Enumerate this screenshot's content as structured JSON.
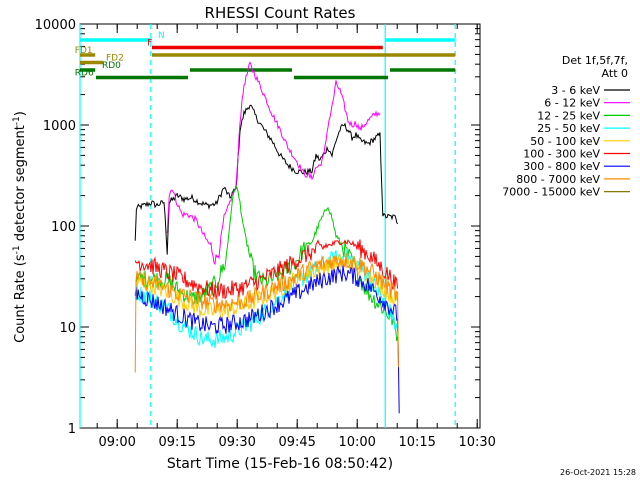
{
  "chart_data": {
    "type": "line",
    "title": "RHESSI Count Rates",
    "xlabel": "Start Time (15-Feb-16 08:50:42)",
    "ylabel_parts": {
      "main": "Count Rate (s",
      "sup1": "-1",
      "mid": " detector segment",
      "sup2": "-1",
      "end": ")"
    },
    "y_scale": "log",
    "ylim": [
      1,
      10000
    ],
    "xlim_minutes": [
      0,
      100
    ],
    "x_ticks": [
      {
        "t": 9.3,
        "label": "09:00"
      },
      {
        "t": 24.3,
        "label": "09:15"
      },
      {
        "t": 39.3,
        "label": "09:30"
      },
      {
        "t": 54.3,
        "label": "09:45"
      },
      {
        "t": 69.3,
        "label": "10:00"
      },
      {
        "t": 84.3,
        "label": "10:15"
      },
      {
        "t": 99.3,
        "label": "10:30"
      }
    ],
    "y_ticks": [
      {
        "v": 1,
        "label": "1"
      },
      {
        "v": 10,
        "label": "10"
      },
      {
        "v": 100,
        "label": "100"
      },
      {
        "v": 1000,
        "label": "1000"
      },
      {
        "v": 10000,
        "label": "10000"
      }
    ],
    "legend_header": [
      "Det 1f,5f,7f,",
      "Att 0"
    ],
    "series": [
      {
        "name": "3 - 6 keV",
        "color": "#000000",
        "points": [
          [
            13.8,
            70
          ],
          [
            14.1,
            150
          ],
          [
            16,
            160
          ],
          [
            18,
            170
          ],
          [
            19,
            160
          ],
          [
            21,
            172
          ],
          [
            21.8,
            60
          ],
          [
            22.3,
            170
          ],
          [
            24.3,
            200
          ],
          [
            26,
            185
          ],
          [
            28,
            190
          ],
          [
            30,
            170
          ],
          [
            32,
            160
          ],
          [
            34,
            165
          ],
          [
            36,
            240
          ],
          [
            37.5,
            190
          ],
          [
            38,
            210
          ],
          [
            39,
            230
          ],
          [
            40,
            900
          ],
          [
            41,
            1300
          ],
          [
            42.5,
            1600
          ],
          [
            44,
            1200
          ],
          [
            46,
            900
          ],
          [
            48,
            700
          ],
          [
            50,
            500
          ],
          [
            52,
            400
          ],
          [
            54,
            350
          ],
          [
            56,
            340
          ],
          [
            58,
            350
          ],
          [
            59,
            500
          ],
          [
            60,
            450
          ],
          [
            62,
            600
          ],
          [
            63,
            500
          ],
          [
            64,
            700
          ],
          [
            65,
            900
          ],
          [
            66,
            1000
          ],
          [
            67,
            900
          ],
          [
            68,
            750
          ],
          [
            69,
            800
          ],
          [
            70,
            700
          ],
          [
            72,
            650
          ],
          [
            73,
            700
          ],
          [
            74,
            750
          ],
          [
            75,
            800
          ],
          [
            75.7,
            130
          ],
          [
            76,
            125
          ],
          [
            79,
            122
          ],
          [
            79.4,
            105
          ]
        ]
      },
      {
        "name": "6 - 12 keV",
        "color": "#ff00ff",
        "points": [
          [
            21.8,
            90
          ],
          [
            22.3,
            200
          ],
          [
            23,
            240
          ],
          [
            24,
            180
          ],
          [
            25.5,
            130
          ],
          [
            27,
            130
          ],
          [
            29,
            115
          ],
          [
            31,
            80
          ],
          [
            33,
            60
          ],
          [
            34,
            45
          ],
          [
            35,
            65
          ],
          [
            36,
            120
          ],
          [
            37,
            150
          ],
          [
            38,
            200
          ],
          [
            39,
            240
          ],
          [
            40,
            1100
          ],
          [
            41,
            2500
          ],
          [
            42.5,
            4000
          ],
          [
            44,
            3000
          ],
          [
            46,
            2000
          ],
          [
            48,
            1300
          ],
          [
            50,
            900
          ],
          [
            52,
            600
          ],
          [
            54,
            450
          ],
          [
            56,
            330
          ],
          [
            58,
            300
          ],
          [
            59,
            380
          ],
          [
            60,
            400
          ],
          [
            61,
            500
          ],
          [
            62,
            1000
          ],
          [
            63,
            1500
          ],
          [
            64,
            2600
          ],
          [
            65,
            2200
          ],
          [
            66,
            1600
          ],
          [
            67,
            1100
          ],
          [
            68,
            1000
          ],
          [
            69,
            1050
          ],
          [
            70,
            900
          ],
          [
            72,
            1100
          ],
          [
            73,
            1200
          ],
          [
            74,
            1300
          ],
          [
            75,
            1300
          ]
        ]
      },
      {
        "name": "12 - 25 keV",
        "color": "#00cc00",
        "points": [
          [
            13.8,
            20
          ],
          [
            14.5,
            30
          ],
          [
            18,
            30
          ],
          [
            22,
            29
          ],
          [
            25,
            22
          ],
          [
            28,
            19
          ],
          [
            31,
            21
          ],
          [
            34,
            27
          ],
          [
            36.5,
            45
          ],
          [
            38,
            170
          ],
          [
            39,
            260
          ],
          [
            40,
            170
          ],
          [
            41,
            90
          ],
          [
            42,
            60
          ],
          [
            43,
            40
          ],
          [
            44,
            32
          ],
          [
            46,
            28
          ],
          [
            48,
            30
          ],
          [
            50,
            33
          ],
          [
            52,
            38
          ],
          [
            54,
            45
          ],
          [
            56,
            60
          ],
          [
            58,
            70
          ],
          [
            60,
            110
          ],
          [
            61,
            130
          ],
          [
            62,
            160
          ],
          [
            63,
            120
          ],
          [
            64,
            80
          ],
          [
            66,
            60
          ],
          [
            68,
            45
          ],
          [
            70,
            30
          ],
          [
            72,
            22
          ],
          [
            74,
            18
          ],
          [
            76,
            15
          ],
          [
            78,
            12
          ],
          [
            79.4,
            8
          ]
        ]
      },
      {
        "name": "25 - 50 keV",
        "color": "#00ffff",
        "points": [
          [
            13.8,
            22
          ],
          [
            14.5,
            22
          ],
          [
            18,
            19
          ],
          [
            22,
            15
          ],
          [
            25,
            11
          ],
          [
            28,
            9
          ],
          [
            31,
            7.5
          ],
          [
            34,
            7.5
          ],
          [
            37,
            8
          ],
          [
            40,
            9.5
          ],
          [
            43,
            11
          ],
          [
            46,
            14
          ],
          [
            49,
            18
          ],
          [
            52,
            23
          ],
          [
            55,
            29
          ],
          [
            58,
            35
          ],
          [
            61,
            42
          ],
          [
            64,
            48
          ],
          [
            66,
            50
          ],
          [
            68,
            46
          ],
          [
            70,
            40
          ],
          [
            72,
            32
          ],
          [
            74,
            24
          ],
          [
            76,
            18
          ],
          [
            78,
            13
          ],
          [
            79.4,
            9
          ]
        ]
      },
      {
        "name": "50 - 100 keV",
        "color": "#ffcc00",
        "points": [
          [
            13.8,
            28
          ],
          [
            18,
            26
          ],
          [
            22,
            22
          ],
          [
            26,
            18
          ],
          [
            30,
            15
          ],
          [
            34,
            14
          ],
          [
            38,
            15
          ],
          [
            42,
            17
          ],
          [
            46,
            20
          ],
          [
            50,
            24
          ],
          [
            54,
            30
          ],
          [
            58,
            36
          ],
          [
            62,
            41
          ],
          [
            65,
            44
          ],
          [
            68,
            41
          ],
          [
            71,
            36
          ],
          [
            74,
            29
          ],
          [
            77,
            22
          ],
          [
            79.4,
            18
          ]
        ]
      },
      {
        "name": "100 - 300 keV",
        "color": "#ff0000",
        "points": [
          [
            13.8,
            45
          ],
          [
            17,
            42
          ],
          [
            21,
            36
          ],
          [
            25,
            31
          ],
          [
            29,
            26
          ],
          [
            33,
            23
          ],
          [
            37,
            23
          ],
          [
            41,
            25
          ],
          [
            45,
            29
          ],
          [
            49,
            35
          ],
          [
            53,
            43
          ],
          [
            57,
            53
          ],
          [
            61,
            62
          ],
          [
            65,
            70
          ],
          [
            67,
            70
          ],
          [
            69,
            64
          ],
          [
            72,
            53
          ],
          [
            75,
            40
          ],
          [
            78,
            30
          ],
          [
            79.4,
            24
          ]
        ]
      },
      {
        "name": "300 - 800 keV",
        "color": "#0000ff",
        "points": [
          [
            13.8,
            22
          ],
          [
            17,
            19
          ],
          [
            21,
            16
          ],
          [
            25,
            13
          ],
          [
            29,
            11
          ],
          [
            33,
            10
          ],
          [
            37,
            10.5
          ],
          [
            41,
            11.5
          ],
          [
            45,
            13.5
          ],
          [
            49,
            16.5
          ],
          [
            53,
            20
          ],
          [
            57,
            25
          ],
          [
            61,
            30
          ],
          [
            65,
            34
          ],
          [
            67,
            34
          ],
          [
            69,
            31
          ],
          [
            72,
            26
          ],
          [
            75,
            20
          ],
          [
            78,
            15
          ],
          [
            79.4,
            13
          ],
          [
            79.8,
            1.4
          ]
        ]
      },
      {
        "name": "800 - 7000 keV",
        "color": "#ff8800",
        "points": [
          [
            13.8,
            4
          ],
          [
            14,
            30
          ],
          [
            17,
            28
          ],
          [
            21,
            25
          ],
          [
            25,
            21
          ],
          [
            29,
            19
          ],
          [
            33,
            17
          ],
          [
            37,
            17
          ],
          [
            41,
            18
          ],
          [
            45,
            21
          ],
          [
            49,
            25
          ],
          [
            53,
            30
          ],
          [
            57,
            37
          ],
          [
            61,
            43
          ],
          [
            65,
            47
          ],
          [
            68,
            45
          ],
          [
            71,
            40
          ],
          [
            74,
            32
          ],
          [
            77,
            25
          ],
          [
            79.4,
            20
          ],
          [
            79.6,
            4
          ]
        ]
      },
      {
        "name": "7000 - 15000 keV",
        "color": "#887700",
        "points": []
      }
    ],
    "bars": [
      {
        "name": "N",
        "color": "#00ffff",
        "label_t": 19.5,
        "y": 2,
        "segments": [
          [
            0,
            17.7
          ],
          [
            76.3,
            93.8
          ]
        ]
      },
      {
        "name": "F",
        "color": "#ee0000",
        "label_t": 16.8,
        "y": 3,
        "segments": [
          [
            18.0,
            75.7
          ]
        ]
      },
      {
        "name": "FD1",
        "color": "#998800",
        "label_t": -1.3,
        "y": 4,
        "segments": [
          [
            0,
            3.8
          ],
          [
            18.0,
            93.8
          ]
        ]
      },
      {
        "name": "FD2",
        "color": "#998800",
        "label_t": 6.5,
        "y": 5,
        "segments": [
          [
            0,
            5.8
          ]
        ]
      },
      {
        "name": "RD0",
        "color": "#007700",
        "label_t": 5.5,
        "y": 6,
        "segments": [
          [
            0,
            3.8
          ],
          [
            27.5,
            53
          ],
          [
            77.5,
            93.8
          ]
        ]
      },
      {
        "name": "RD6",
        "color": "#007700",
        "label_t": -1.3,
        "y": 7,
        "segments": [
          [
            4.0,
            27.0
          ],
          [
            53.5,
            77.0
          ]
        ]
      }
    ],
    "vlines": [
      {
        "t": 0,
        "color": "#00ffff",
        "dashed": false
      },
      {
        "t": 17.7,
        "color": "#00ffff",
        "dashed": true
      },
      {
        "t": 76.3,
        "color": "#00ffff",
        "dashed": false
      },
      {
        "t": 93.8,
        "color": "#00ffff",
        "dashed": true
      }
    ],
    "footer": "26-Oct-2021 15:28"
  }
}
